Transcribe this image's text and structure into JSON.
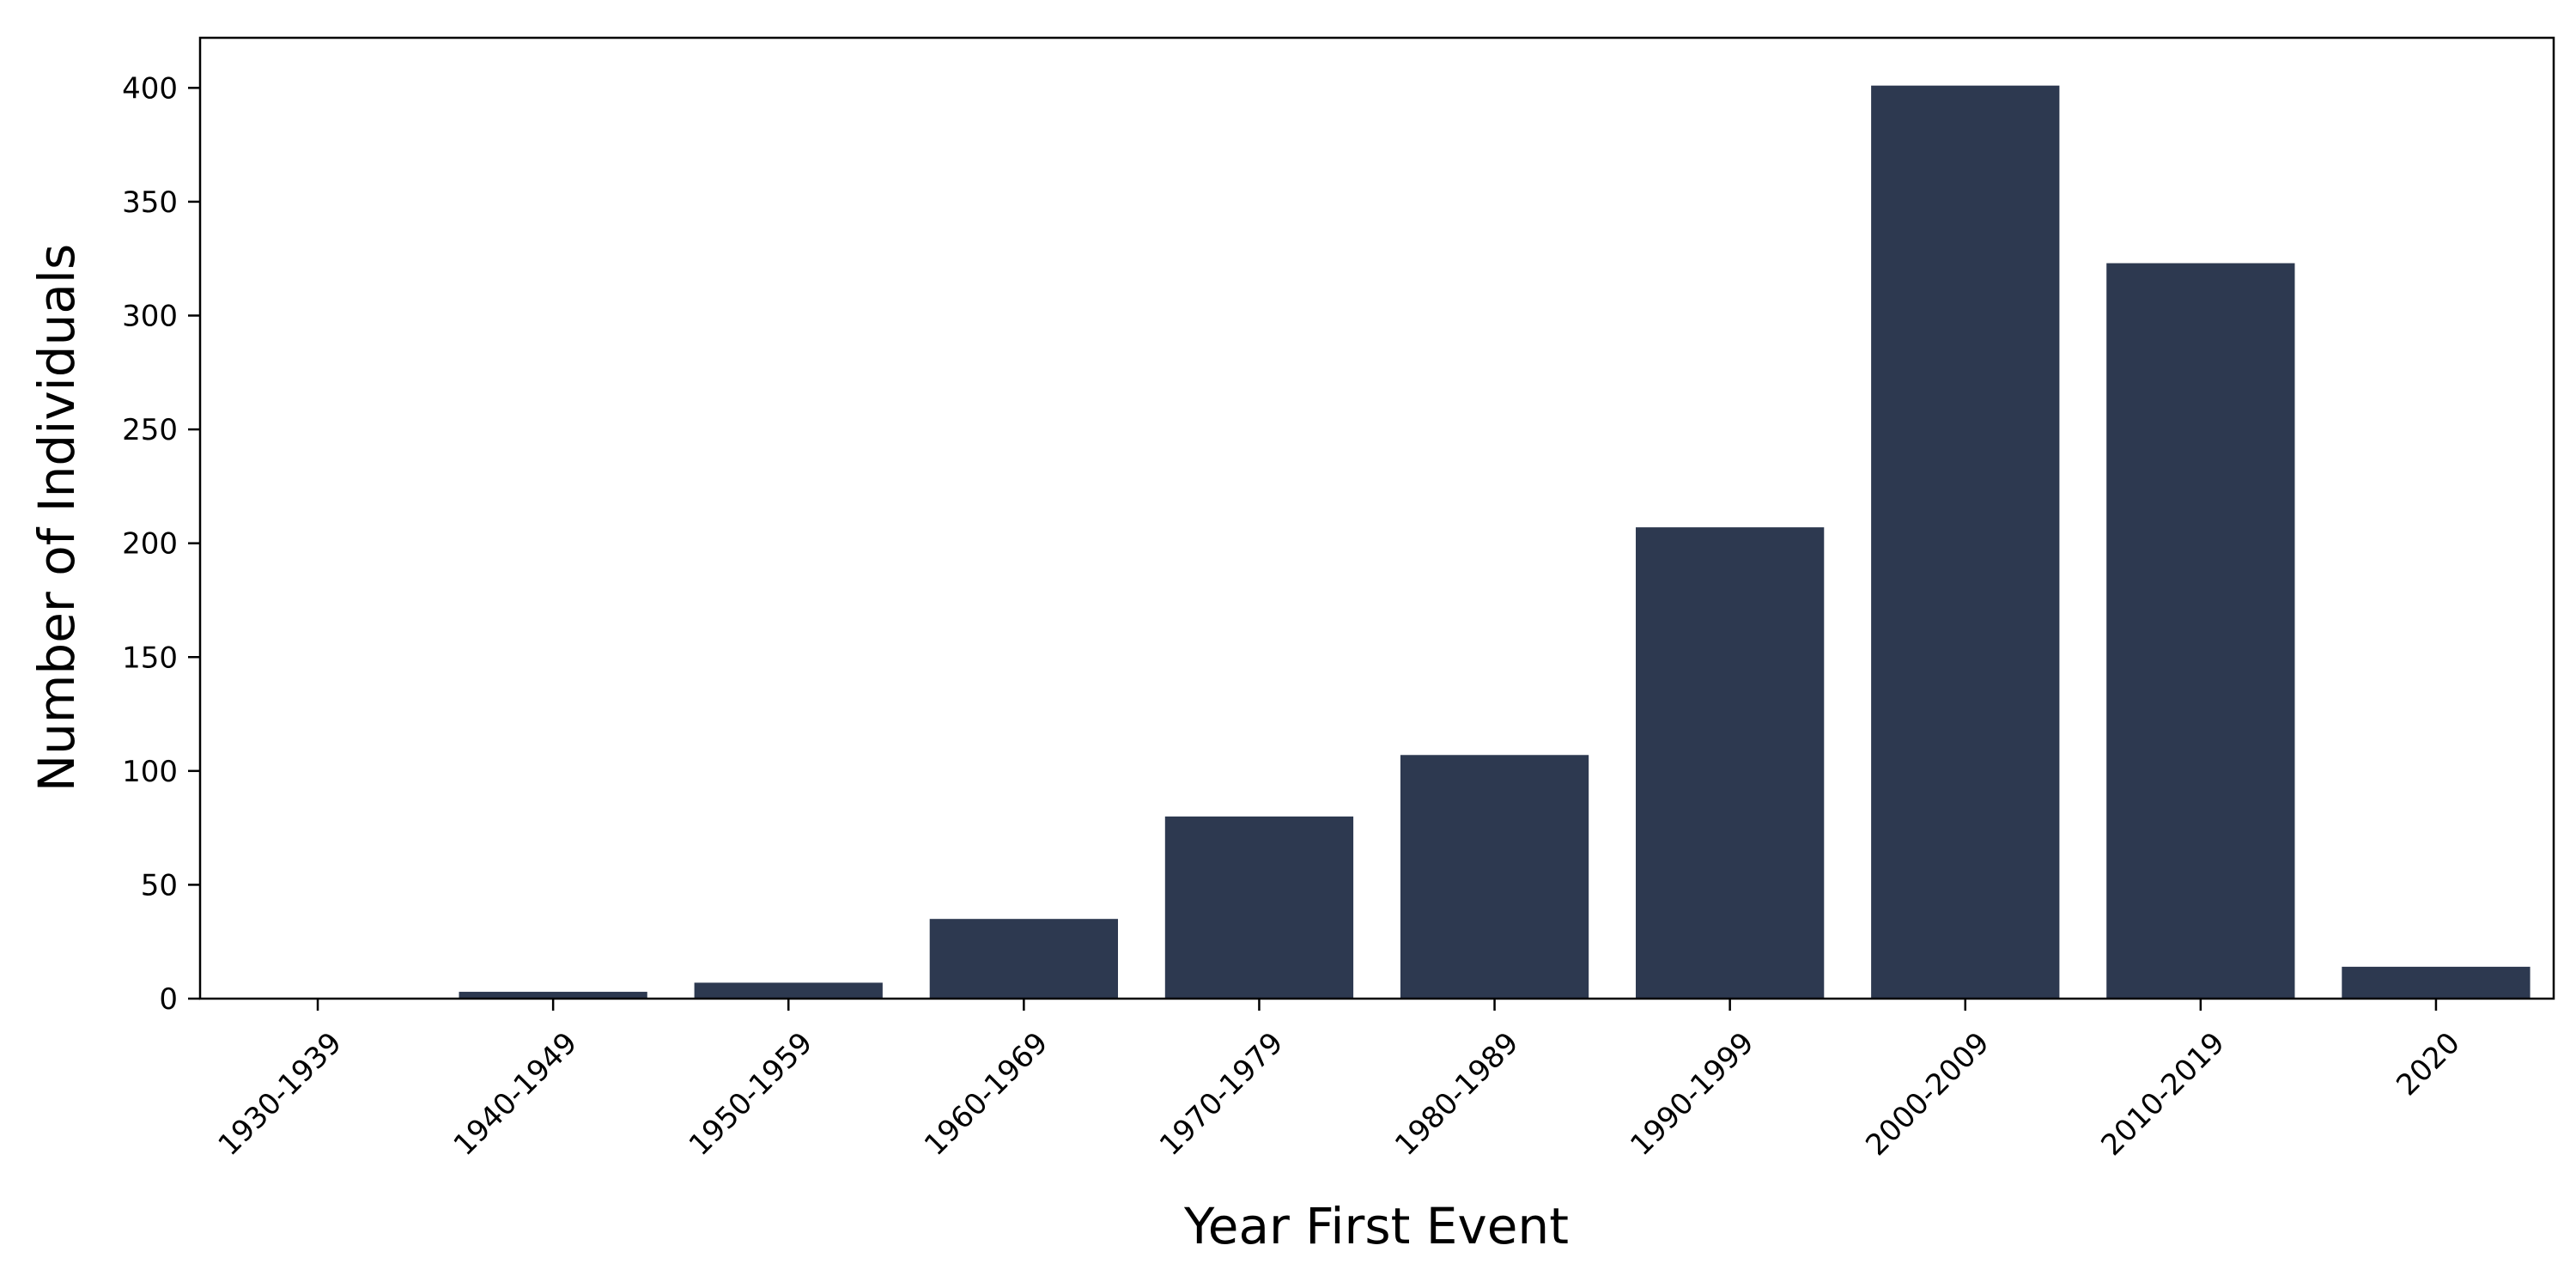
{
  "chart_data": {
    "type": "bar",
    "title": "",
    "xlabel": "Year First Event",
    "ylabel": "Number of Individuals",
    "categories": [
      "1930-1939",
      "1940-1949",
      "1950-1959",
      "1960-1969",
      "1970-1979",
      "1980-1989",
      "1990-1999",
      "2000-2009",
      "2010-2019",
      "2020"
    ],
    "values": [
      0,
      3,
      7,
      35,
      80,
      107,
      207,
      401,
      323,
      14
    ],
    "ylim": [
      0,
      422
    ],
    "yticks": [
      0,
      50,
      100,
      150,
      200,
      250,
      300,
      350,
      400
    ],
    "bar_color": "#2d3950",
    "grid": false,
    "legend": "none"
  }
}
